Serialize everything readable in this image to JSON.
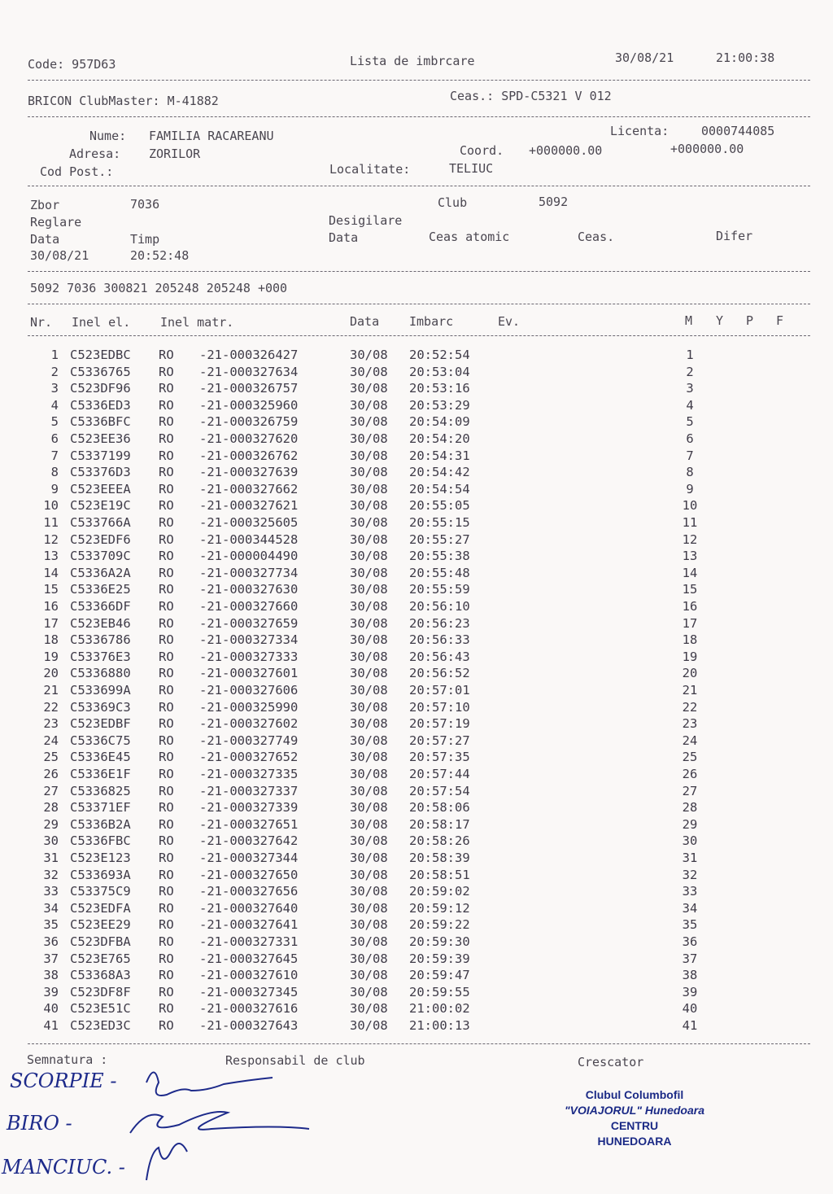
{
  "header": {
    "code": "Code: 957D63",
    "title": "Lista de imbrcare",
    "date": "30/08/21",
    "time": "21:00:38",
    "system": "BRICON ClubMaster: M-41882",
    "clock": "Ceas.: SPD-C5321 V 012"
  },
  "owner": {
    "name_label": "Nume:",
    "name": "FAMILIA RACAREANU",
    "address_label": "Adresa:",
    "address": "ZORILOR",
    "postal_label": "Cod Post.:",
    "license_label": "Licenta:",
    "license": "0000744085",
    "coord_label": "Coord.",
    "coord_1": "+000000.00",
    "coord_2": "+000000.00",
    "locality_label": "Localitate:",
    "locality": "TELIUC"
  },
  "flight": {
    "zbor_label": "Zbor",
    "zbor": "7036",
    "club_label": "Club",
    "club": "5092",
    "reglare": "Reglare",
    "desigilare": "Desigilare",
    "data_label": "Data",
    "timp_label": "Timp",
    "data2_label": "Data",
    "atomic_label": "Ceas atomic",
    "ceas_label": "Ceas.",
    "difer_label": "Difer",
    "reg_date": "30/08/21",
    "reg_time": "20:52:48",
    "code_line": "5092 7036 300821 205248 205248 +000"
  },
  "table": {
    "headers": {
      "nr": "Nr.",
      "ring": "Inel el.",
      "matr": "Inel matr.",
      "date": "Data",
      "time": "Imbarc",
      "ev": "Ev.",
      "m": "M",
      "y": "Y",
      "p": "P",
      "f": "F"
    },
    "rows": [
      [
        "1",
        "C523EDBC",
        "RO",
        "-21-000326427",
        "30/08",
        "20:52:54",
        "1"
      ],
      [
        "2",
        "C5336765",
        "RO",
        "-21-000327634",
        "30/08",
        "20:53:04",
        "2"
      ],
      [
        "3",
        "C523DF96",
        "RO",
        "-21-000326757",
        "30/08",
        "20:53:16",
        "3"
      ],
      [
        "4",
        "C5336ED3",
        "RO",
        "-21-000325960",
        "30/08",
        "20:53:29",
        "4"
      ],
      [
        "5",
        "C5336BFC",
        "RO",
        "-21-000326759",
        "30/08",
        "20:54:09",
        "5"
      ],
      [
        "6",
        "C523EE36",
        "RO",
        "-21-000327620",
        "30/08",
        "20:54:20",
        "6"
      ],
      [
        "7",
        "C5337199",
        "RO",
        "-21-000326762",
        "30/08",
        "20:54:31",
        "7"
      ],
      [
        "8",
        "C53376D3",
        "RO",
        "-21-000327639",
        "30/08",
        "20:54:42",
        "8"
      ],
      [
        "9",
        "C523EEEA",
        "RO",
        "-21-000327662",
        "30/08",
        "20:54:54",
        "9"
      ],
      [
        "10",
        "C523E19C",
        "RO",
        "-21-000327621",
        "30/08",
        "20:55:05",
        "10"
      ],
      [
        "11",
        "C533766A",
        "RO",
        "-21-000325605",
        "30/08",
        "20:55:15",
        "11"
      ],
      [
        "12",
        "C523EDF6",
        "RO",
        "-21-000344528",
        "30/08",
        "20:55:27",
        "12"
      ],
      [
        "13",
        "C533709C",
        "RO",
        "-21-000004490",
        "30/08",
        "20:55:38",
        "13"
      ],
      [
        "14",
        "C5336A2A",
        "RO",
        "-21-000327734",
        "30/08",
        "20:55:48",
        "14"
      ],
      [
        "15",
        "C5336E25",
        "RO",
        "-21-000327630",
        "30/08",
        "20:55:59",
        "15"
      ],
      [
        "16",
        "C53366DF",
        "RO",
        "-21-000327660",
        "30/08",
        "20:56:10",
        "16"
      ],
      [
        "17",
        "C523EB46",
        "RO",
        "-21-000327659",
        "30/08",
        "20:56:23",
        "17"
      ],
      [
        "18",
        "C5336786",
        "RO",
        "-21-000327334",
        "30/08",
        "20:56:33",
        "18"
      ],
      [
        "19",
        "C53376E3",
        "RO",
        "-21-000327333",
        "30/08",
        "20:56:43",
        "19"
      ],
      [
        "20",
        "C5336880",
        "RO",
        "-21-000327601",
        "30/08",
        "20:56:52",
        "20"
      ],
      [
        "21",
        "C533699A",
        "RO",
        "-21-000327606",
        "30/08",
        "20:57:01",
        "21"
      ],
      [
        "22",
        "C53369C3",
        "RO",
        "-21-000325990",
        "30/08",
        "20:57:10",
        "22"
      ],
      [
        "23",
        "C523EDBF",
        "RO",
        "-21-000327602",
        "30/08",
        "20:57:19",
        "23"
      ],
      [
        "24",
        "C5336C75",
        "RO",
        "-21-000327749",
        "30/08",
        "20:57:27",
        "24"
      ],
      [
        "25",
        "C5336E45",
        "RO",
        "-21-000327652",
        "30/08",
        "20:57:35",
        "25"
      ],
      [
        "26",
        "C5336E1F",
        "RO",
        "-21-000327335",
        "30/08",
        "20:57:44",
        "26"
      ],
      [
        "27",
        "C5336825",
        "RO",
        "-21-000327337",
        "30/08",
        "20:57:54",
        "27"
      ],
      [
        "28",
        "C53371EF",
        "RO",
        "-21-000327339",
        "30/08",
        "20:58:06",
        "28"
      ],
      [
        "29",
        "C5336B2A",
        "RO",
        "-21-000327651",
        "30/08",
        "20:58:17",
        "29"
      ],
      [
        "30",
        "C5336FBC",
        "RO",
        "-21-000327642",
        "30/08",
        "20:58:26",
        "30"
      ],
      [
        "31",
        "C523E123",
        "RO",
        "-21-000327344",
        "30/08",
        "20:58:39",
        "31"
      ],
      [
        "32",
        "C533693A",
        "RO",
        "-21-000327650",
        "30/08",
        "20:58:51",
        "32"
      ],
      [
        "33",
        "C53375C9",
        "RO",
        "-21-000327656",
        "30/08",
        "20:59:02",
        "33"
      ],
      [
        "34",
        "C523EDFA",
        "RO",
        "-21-000327640",
        "30/08",
        "20:59:12",
        "34"
      ],
      [
        "35",
        "C523EE29",
        "RO",
        "-21-000327641",
        "30/08",
        "20:59:22",
        "35"
      ],
      [
        "36",
        "C523DFBA",
        "RO",
        "-21-000327331",
        "30/08",
        "20:59:30",
        "36"
      ],
      [
        "37",
        "C523E765",
        "RO",
        "-21-000327645",
        "30/08",
        "20:59:39",
        "37"
      ],
      [
        "38",
        "C53368A3",
        "RO",
        "-21-000327610",
        "30/08",
        "20:59:47",
        "38"
      ],
      [
        "39",
        "C523DF8F",
        "RO",
        "-21-000327345",
        "30/08",
        "20:59:55",
        "39"
      ],
      [
        "40",
        "C523E51C",
        "RO",
        "-21-000327616",
        "30/08",
        "21:00:02",
        "40"
      ],
      [
        "41",
        "C523ED3C",
        "RO",
        "-21-000327643",
        "30/08",
        "21:00:13",
        "41"
      ]
    ]
  },
  "footer": {
    "signature_label": "Semnatura :",
    "club_resp_label": "Responsabil de club",
    "breeder_label": "Crescator",
    "handwritten": [
      "SCORPIE -",
      "BIRO -",
      "MANCIUC. -"
    ],
    "stamp": [
      "Clubul Columbofil",
      "\"VOIAJORUL\" Hunedoara",
      "CENTRU",
      "HUNEDOARA"
    ]
  }
}
